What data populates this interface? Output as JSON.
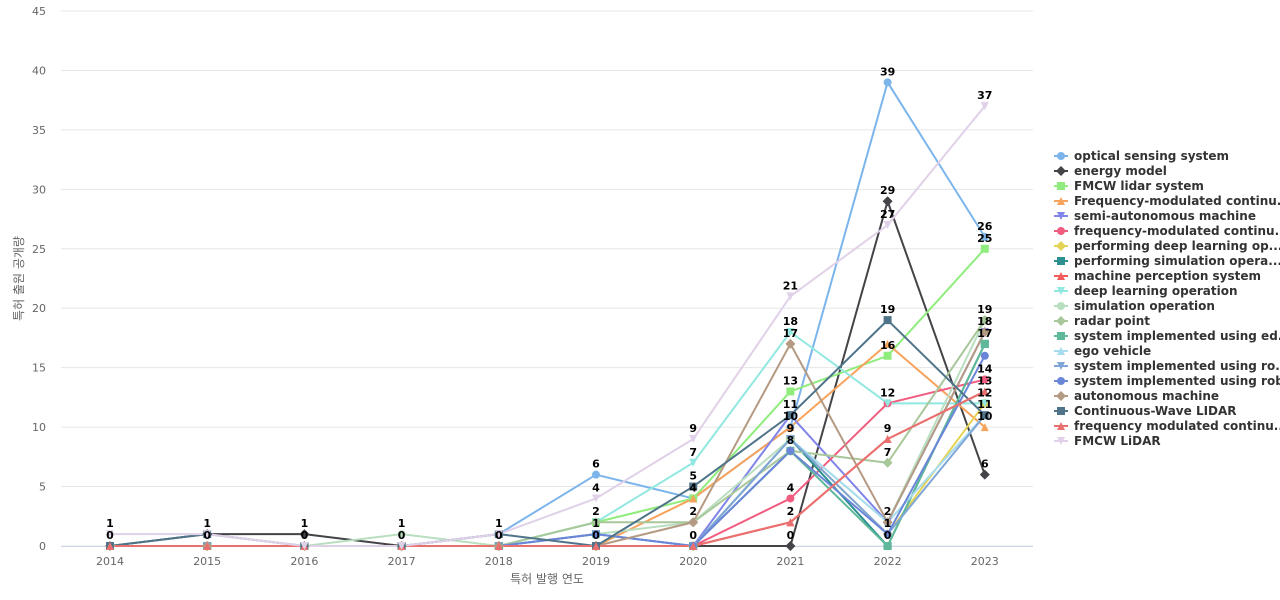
{
  "chart_data": {
    "type": "line",
    "xlabel": "특허 발행 연도",
    "ylabel": "특허 출원 공개량",
    "ylim": [
      0,
      45
    ],
    "yticks": [
      0,
      5,
      10,
      15,
      20,
      25,
      30,
      35,
      40,
      45
    ],
    "x": [
      "2014",
      "2015",
      "2016",
      "2017",
      "2018",
      "2019",
      "2020",
      "2021",
      "2022",
      "2023"
    ],
    "grid": "horizontal",
    "legend_position": "right",
    "series": [
      {
        "name": "optical sensing system",
        "color": "#7cb5ec",
        "marker": "circle",
        "values": [
          0,
          0,
          0,
          0,
          1,
          6,
          4,
          10,
          39,
          26
        ]
      },
      {
        "name": "energy model",
        "color": "#434348",
        "marker": "diamond",
        "values": [
          0,
          1,
          1,
          0,
          0,
          0,
          0,
          0,
          29,
          6
        ]
      },
      {
        "name": "FMCW lidar system",
        "color": "#90ed7d",
        "marker": "square",
        "values": [
          0,
          0,
          0,
          0,
          0,
          2,
          4,
          13,
          16,
          25
        ]
      },
      {
        "name": "Frequency-modulated continu...",
        "color": "#f7a35c",
        "marker": "triangle",
        "values": [
          0,
          0,
          0,
          0,
          0,
          0,
          4,
          10,
          17,
          10
        ]
      },
      {
        "name": "semi-autonomous machine",
        "color": "#8085e9",
        "marker": "triangle-down",
        "values": [
          0,
          0,
          0,
          0,
          0,
          0,
          0,
          11,
          2,
          18
        ]
      },
      {
        "name": "frequency-modulated continu...",
        "color": "#f15c80",
        "marker": "circle",
        "values": [
          0,
          0,
          0,
          0,
          0,
          0,
          0,
          4,
          12,
          14
        ]
      },
      {
        "name": "performing deep learning op...",
        "color": "#e4d354",
        "marker": "diamond",
        "values": [
          0,
          0,
          0,
          0,
          0,
          0,
          0,
          9,
          1,
          12
        ]
      },
      {
        "name": "performing simulation opera...",
        "color": "#2b908f",
        "marker": "square",
        "values": [
          0,
          0,
          0,
          0,
          0,
          0,
          0,
          9,
          0,
          17
        ]
      },
      {
        "name": "machine perception system",
        "color": "#f45b5b",
        "marker": "triangle",
        "values": [
          0,
          0,
          0,
          0,
          0,
          0,
          0,
          2,
          9,
          13
        ]
      },
      {
        "name": "deep learning operation",
        "color": "#91e8e1",
        "marker": "triangle-down",
        "values": [
          0,
          0,
          0,
          0,
          0,
          2,
          7,
          18,
          12,
          12
        ]
      },
      {
        "name": "simulation operation",
        "color": "#b9dfc0",
        "marker": "circle",
        "values": [
          0,
          0,
          0,
          1,
          0,
          1,
          2,
          9,
          2,
          19
        ]
      },
      {
        "name": "radar point",
        "color": "#a8c79a",
        "marker": "diamond",
        "values": [
          0,
          0,
          0,
          0,
          0,
          2,
          2,
          8,
          7,
          19
        ]
      },
      {
        "name": "system implemented using ed...",
        "color": "#5fb89a",
        "marker": "square",
        "values": [
          0,
          0,
          0,
          0,
          0,
          1,
          0,
          8,
          0,
          17
        ]
      },
      {
        "name": "ego vehicle",
        "color": "#a6dcee",
        "marker": "triangle",
        "values": [
          0,
          0,
          0,
          0,
          0,
          1,
          0,
          9,
          2,
          11
        ]
      },
      {
        "name": "system implemented using ro...",
        "color": "#7fa6d6",
        "marker": "triangle-down",
        "values": [
          0,
          0,
          0,
          0,
          0,
          1,
          0,
          9,
          1,
          11
        ]
      },
      {
        "name": "system implemented using robot",
        "color": "#6b86d9",
        "marker": "circle",
        "values": [
          0,
          0,
          0,
          0,
          0,
          1,
          0,
          8,
          1,
          16
        ]
      },
      {
        "name": "autonomous machine",
        "color": "#b59a83",
        "marker": "diamond",
        "values": [
          0,
          0,
          0,
          0,
          0,
          0,
          2,
          17,
          2,
          18
        ]
      },
      {
        "name": "Continuous-Wave LIDAR",
        "color": "#4f7489",
        "marker": "square",
        "values": [
          0,
          1,
          0,
          0,
          1,
          0,
          5,
          11,
          19,
          11
        ]
      },
      {
        "name": "frequency modulated continu...",
        "color": "#ea7070",
        "marker": "triangle",
        "values": [
          0,
          0,
          0,
          0,
          0,
          0,
          0,
          2,
          9,
          13
        ]
      },
      {
        "name": "FMCW LiDAR",
        "color": "#e0d1e8",
        "marker": "triangle-down",
        "values": [
          1,
          1,
          0,
          0,
          1,
          4,
          9,
          21,
          27,
          37
        ]
      }
    ],
    "data_labels": [
      {
        "x": "2014",
        "value": 1,
        "text": "1"
      },
      {
        "x": "2014",
        "value": 0,
        "text": "0"
      },
      {
        "x": "2015",
        "value": 1,
        "text": "1"
      },
      {
        "x": "2015",
        "value": 0,
        "text": "0"
      },
      {
        "x": "2016",
        "value": 1,
        "text": "1"
      },
      {
        "x": "2016",
        "value": 0,
        "text": "0"
      },
      {
        "x": "2017",
        "value": 1,
        "text": "1"
      },
      {
        "x": "2017",
        "value": 0,
        "text": "0"
      },
      {
        "x": "2018",
        "value": 1,
        "text": "1"
      },
      {
        "x": "2018",
        "value": 0,
        "text": "0"
      },
      {
        "x": "2019",
        "value": 6,
        "text": "6"
      },
      {
        "x": "2019",
        "value": 4,
        "text": "4"
      },
      {
        "x": "2019",
        "value": 2,
        "text": "2"
      },
      {
        "x": "2019",
        "value": 1,
        "text": "1"
      },
      {
        "x": "2019",
        "value": 0,
        "text": "0"
      },
      {
        "x": "2020",
        "value": 9,
        "text": "9"
      },
      {
        "x": "2020",
        "value": 7,
        "text": "7"
      },
      {
        "x": "2020",
        "value": 5,
        "text": "5"
      },
      {
        "x": "2020",
        "value": 4,
        "text": "4"
      },
      {
        "x": "2020",
        "value": 2,
        "text": "2"
      },
      {
        "x": "2020",
        "value": 0,
        "text": "0"
      },
      {
        "x": "2021",
        "value": 21,
        "text": "21"
      },
      {
        "x": "2021",
        "value": 18,
        "text": "18"
      },
      {
        "x": "2021",
        "value": 17,
        "text": "17"
      },
      {
        "x": "2021",
        "value": 13,
        "text": "13"
      },
      {
        "x": "2021",
        "value": 11,
        "text": "11"
      },
      {
        "x": "2021",
        "value": 10,
        "text": "10"
      },
      {
        "x": "2021",
        "value": 9,
        "text": "9"
      },
      {
        "x": "2021",
        "value": 8,
        "text": "8"
      },
      {
        "x": "2021",
        "value": 4,
        "text": "4"
      },
      {
        "x": "2021",
        "value": 2,
        "text": "2"
      },
      {
        "x": "2021",
        "value": 0,
        "text": "0"
      },
      {
        "x": "2022",
        "value": 39,
        "text": "39"
      },
      {
        "x": "2022",
        "value": 29,
        "text": "29"
      },
      {
        "x": "2022",
        "value": 27,
        "text": "27"
      },
      {
        "x": "2022",
        "value": 19,
        "text": "19"
      },
      {
        "x": "2022",
        "value": 16,
        "text": "16"
      },
      {
        "x": "2022",
        "value": 12,
        "text": "12"
      },
      {
        "x": "2022",
        "value": 9,
        "text": "9"
      },
      {
        "x": "2022",
        "value": 7,
        "text": "7"
      },
      {
        "x": "2022",
        "value": 2,
        "text": "2"
      },
      {
        "x": "2022",
        "value": 1,
        "text": "1"
      },
      {
        "x": "2022",
        "value": 0,
        "text": "0"
      },
      {
        "x": "2023",
        "value": 37,
        "text": "37"
      },
      {
        "x": "2023",
        "value": 26,
        "text": "26"
      },
      {
        "x": "2023",
        "value": 25,
        "text": "25"
      },
      {
        "x": "2023",
        "value": 19,
        "text": "19"
      },
      {
        "x": "2023",
        "value": 18,
        "text": "18"
      },
      {
        "x": "2023",
        "value": 17,
        "text": "17"
      },
      {
        "x": "2023",
        "value": 14,
        "text": "14"
      },
      {
        "x": "2023",
        "value": 13,
        "text": "13"
      },
      {
        "x": "2023",
        "value": 12,
        "text": "12"
      },
      {
        "x": "2023",
        "value": 11,
        "text": "11"
      },
      {
        "x": "2023",
        "value": 10,
        "text": "10"
      },
      {
        "x": "2023",
        "value": 6,
        "text": "6"
      }
    ]
  }
}
